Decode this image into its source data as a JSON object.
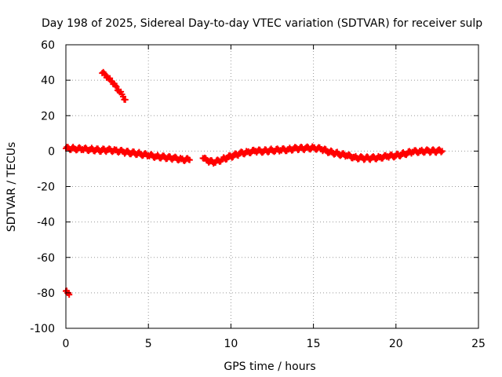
{
  "chart_data": {
    "type": "scatter",
    "title": "Day 198 of 2025, Sidereal Day-to-day VTEC variation (SDTVAR) for receiver sulp",
    "xlabel": "GPS time / hours",
    "ylabel": "SDTVAR / TECUs",
    "xlim": [
      0,
      25
    ],
    "ylim": [
      -100,
      60
    ],
    "xticks": [
      0,
      5,
      10,
      15,
      20,
      25
    ],
    "yticks": [
      -100,
      -80,
      -60,
      -40,
      -20,
      0,
      20,
      40,
      60
    ],
    "grid": true,
    "marker": "plus",
    "series": [
      {
        "name": "SDTVAR",
        "color": "#ff0000",
        "x": [
          0.0,
          0.1,
          0.2,
          2.2,
          2.4,
          2.6,
          2.8,
          3.0,
          3.2,
          3.4,
          3.6,
          0.0,
          0.5,
          1.0,
          1.5,
          2.0,
          2.5,
          3.0,
          3.5,
          4.0,
          4.5,
          5.0,
          5.5,
          6.0,
          6.5,
          7.0,
          7.5,
          8.3,
          8.6,
          9.0,
          9.5,
          10.0,
          10.5,
          11.0,
          11.5,
          12.0,
          12.5,
          13.0,
          13.5,
          14.0,
          14.5,
          15.0,
          15.5,
          16.0,
          16.5,
          17.0,
          17.5,
          18.0,
          18.5,
          19.0,
          19.5,
          20.0,
          20.5,
          21.0,
          21.5,
          22.0,
          22.5,
          22.8
        ],
        "y": [
          -79,
          -80,
          -81,
          44,
          43,
          41,
          39,
          37,
          34,
          32,
          29,
          1.5,
          1.5,
          1.0,
          1.0,
          0.5,
          0.5,
          0.5,
          -0.5,
          -1.0,
          -1.5,
          -2.5,
          -3.0,
          -3.5,
          -4.0,
          -4.5,
          -5.0,
          -4.0,
          -5.5,
          -6.5,
          -4.5,
          -3.0,
          -1.5,
          -0.5,
          0.0,
          0.0,
          0.5,
          0.5,
          1.0,
          1.5,
          1.5,
          2.0,
          1.0,
          -0.5,
          -1.5,
          -2.5,
          -3.5,
          -4.0,
          -4.0,
          -3.5,
          -3.0,
          -2.5,
          -1.5,
          -0.5,
          0.0,
          0.0,
          0.0,
          0.0
        ]
      }
    ]
  }
}
